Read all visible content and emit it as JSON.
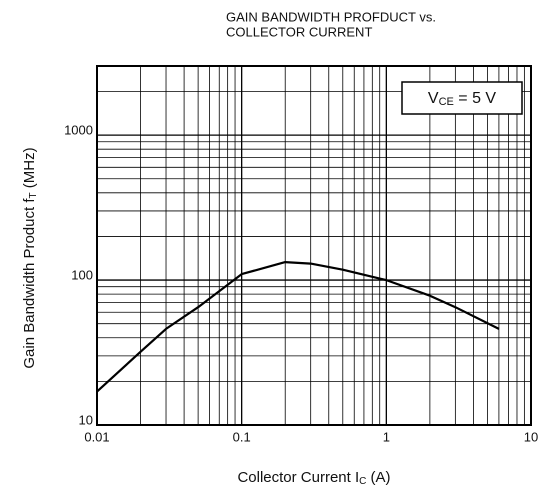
{
  "chart_data": {
    "type": "line",
    "title": [
      "GAIN BANDWIDTH PROFDUCT vs.",
      "COLLECTOR CURRENT"
    ],
    "xlabel": {
      "text": "Collector Current  I",
      "sub": "C",
      "rest": "  (A)"
    },
    "ylabel": {
      "text": "Gain Bandwidth Product  f",
      "sub": "T",
      "rest": "  (MHz)"
    },
    "annotation": {
      "text": "V",
      "sub": "CE",
      "rest": " = 5 V"
    },
    "x": [
      0.01,
      0.02,
      0.03,
      0.05,
      0.1,
      0.2,
      0.3,
      0.5,
      1,
      2,
      3,
      6
    ],
    "series": [
      {
        "name": "fT",
        "color": "#000000",
        "values": [
          17,
          32,
          46,
          65,
          110,
          133,
          130,
          118,
          100,
          78,
          65,
          46
        ]
      }
    ],
    "xlim": [
      0.01,
      10
    ],
    "xticks": [
      0.01,
      0.1,
      1,
      10
    ],
    "ylim": [
      10,
      3000
    ],
    "yticks": [
      10,
      100,
      1000
    ],
    "xlog": true,
    "ylog": true,
    "grid": "minor"
  }
}
